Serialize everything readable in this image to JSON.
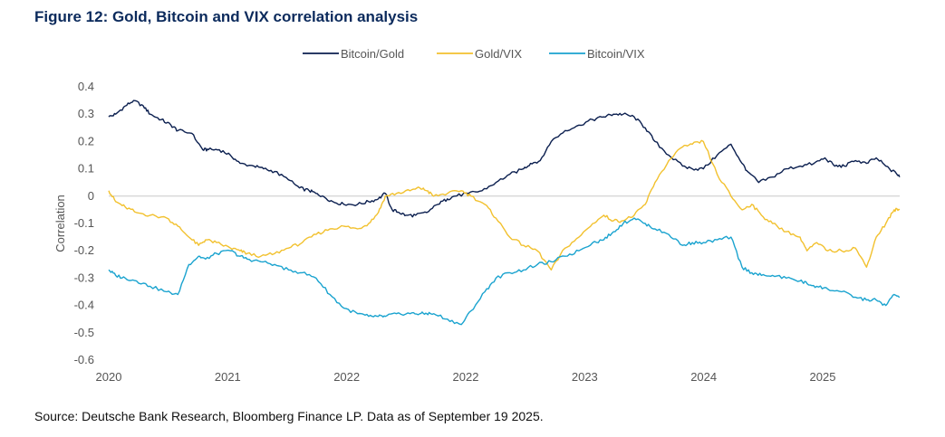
{
  "title": "Figure 12: Gold, Bitcoin and VIX correlation analysis",
  "source": "Source: Deutsche Bank Research, Bloomberg Finance LP. Data as of September 19 2025.",
  "chart_data": {
    "type": "line",
    "xlabel": "",
    "ylabel": "Correlation",
    "ylim": [
      -0.6,
      0.4
    ],
    "yticks": [
      "0.4",
      "0.3",
      "0.2",
      "0.1",
      "0",
      "-0.1",
      "-0.2",
      "-0.3",
      "-0.4",
      "-0.5",
      "-0.6"
    ],
    "xticks": [
      "2020",
      "2021",
      "2022",
      "2022",
      "2023",
      "2024",
      "2025"
    ],
    "legend_position": "top-center",
    "zero_line": true,
    "series": [
      {
        "name": "Bitcoin/Gold",
        "color": "#0b1f4f",
        "x": [
          2020.0,
          2020.05,
          2020.12,
          2020.18,
          2020.25,
          2020.3,
          2020.38,
          2020.45,
          2020.5,
          2020.6,
          2020.68,
          2020.72,
          2020.8,
          2020.88,
          2020.95,
          2021.05,
          2021.12,
          2021.2,
          2021.3,
          2021.38,
          2021.45,
          2021.5,
          2021.55,
          2021.62,
          2021.7,
          2021.8,
          2021.88,
          2021.95,
          2022.0,
          2022.05,
          2022.1,
          2022.15,
          2022.22,
          2022.3,
          2022.38,
          2022.45,
          2022.5,
          2022.6,
          2022.7,
          2022.8,
          2022.9,
          2023.0,
          2023.05,
          2023.12,
          2023.2,
          2023.3,
          2023.4,
          2023.5,
          2023.58,
          2023.65,
          2023.72,
          2023.8,
          2023.88,
          2023.95,
          2024.05,
          2024.15,
          2024.22,
          2024.3,
          2024.4,
          2024.5,
          2024.58,
          2024.62,
          2024.7,
          2024.8,
          2024.9,
          2025.0,
          2025.1,
          2025.18,
          2025.25,
          2025.32,
          2025.4,
          2025.48,
          2025.55,
          2025.62,
          2025.7,
          2025.72
        ],
        "values": [
          0.29,
          0.3,
          0.33,
          0.35,
          0.33,
          0.3,
          0.28,
          0.26,
          0.24,
          0.23,
          0.17,
          0.17,
          0.17,
          0.15,
          0.12,
          0.11,
          0.1,
          0.09,
          0.06,
          0.03,
          0.02,
          0.01,
          0.0,
          -0.02,
          -0.03,
          -0.03,
          -0.02,
          -0.01,
          0.01,
          -0.05,
          -0.06,
          -0.07,
          -0.07,
          -0.06,
          -0.03,
          -0.01,
          0.0,
          0.01,
          0.02,
          0.05,
          0.08,
          0.1,
          0.12,
          0.13,
          0.2,
          0.24,
          0.26,
          0.28,
          0.29,
          0.3,
          0.3,
          0.29,
          0.25,
          0.2,
          0.15,
          0.11,
          0.1,
          0.1,
          0.15,
          0.19,
          0.12,
          0.09,
          0.05,
          0.07,
          0.1,
          0.11,
          0.12,
          0.14,
          0.11,
          0.11,
          0.13,
          0.12,
          0.14,
          0.11,
          0.08,
          0.07
        ]
      },
      {
        "name": "Gold/VIX",
        "color": "#f2c12e",
        "x": [
          2020.0,
          2020.05,
          2020.12,
          2020.2,
          2020.3,
          2020.42,
          2020.5,
          2020.58,
          2020.65,
          2020.7,
          2020.78,
          2020.88,
          2020.95,
          2021.0,
          2021.1,
          2021.2,
          2021.3,
          2021.4,
          2021.5,
          2021.6,
          2021.7,
          2021.8,
          2021.88,
          2021.95,
          2022.0,
          2022.08,
          2022.18,
          2022.25,
          2022.3,
          2022.35,
          2022.45,
          2022.55,
          2022.62,
          2022.72,
          2022.8,
          2022.9,
          2023.0,
          2023.1,
          2023.2,
          2023.3,
          2023.4,
          2023.5,
          2023.58,
          2023.65,
          2023.72,
          2023.8,
          2023.88,
          2023.95,
          2024.05,
          2024.15,
          2024.22,
          2024.3,
          2024.4,
          2024.5,
          2024.58,
          2024.65,
          2024.72,
          2024.8,
          2024.9,
          2025.0,
          2025.05,
          2025.12,
          2025.2,
          2025.3,
          2025.4,
          2025.48,
          2025.55,
          2025.62,
          2025.68,
          2025.72
        ],
        "values": [
          0.02,
          -0.02,
          -0.04,
          -0.06,
          -0.07,
          -0.08,
          -0.11,
          -0.15,
          -0.18,
          -0.16,
          -0.17,
          -0.19,
          -0.2,
          -0.21,
          -0.22,
          -0.21,
          -0.19,
          -0.17,
          -0.14,
          -0.12,
          -0.11,
          -0.12,
          -0.1,
          -0.06,
          0.0,
          0.01,
          0.02,
          0.03,
          0.02,
          0.0,
          0.01,
          0.02,
          0.0,
          -0.03,
          -0.08,
          -0.15,
          -0.18,
          -0.2,
          -0.27,
          -0.19,
          -0.15,
          -0.1,
          -0.07,
          -0.09,
          -0.09,
          -0.07,
          -0.03,
          0.05,
          0.13,
          0.18,
          0.19,
          0.2,
          0.08,
          0.0,
          -0.05,
          -0.03,
          -0.07,
          -0.1,
          -0.13,
          -0.15,
          -0.2,
          -0.17,
          -0.2,
          -0.2,
          -0.19,
          -0.26,
          -0.15,
          -0.1,
          -0.05,
          -0.05
        ]
      },
      {
        "name": "Bitcoin/VIX",
        "color": "#1aa3cf",
        "x": [
          2020.0,
          2020.05,
          2020.12,
          2020.2,
          2020.3,
          2020.42,
          2020.5,
          2020.58,
          2020.65,
          2020.7,
          2020.78,
          2020.88,
          2020.95,
          2021.0,
          2021.1,
          2021.2,
          2021.3,
          2021.4,
          2021.5,
          2021.6,
          2021.7,
          2021.8,
          2021.88,
          2021.95,
          2022.0,
          2022.08,
          2022.18,
          2022.25,
          2022.3,
          2022.35,
          2022.45,
          2022.55,
          2022.62,
          2022.72,
          2022.8,
          2022.9,
          2023.0,
          2023.1,
          2023.2,
          2023.3,
          2023.4,
          2023.5,
          2023.58,
          2023.65,
          2023.72,
          2023.8,
          2023.88,
          2023.95,
          2024.05,
          2024.15,
          2024.22,
          2024.3,
          2024.4,
          2024.5,
          2024.58,
          2024.65,
          2024.72,
          2024.8,
          2024.9,
          2025.0,
          2025.05,
          2025.12,
          2025.2,
          2025.3,
          2025.4,
          2025.48,
          2025.55,
          2025.62,
          2025.68,
          2025.72
        ],
        "values": [
          -0.27,
          -0.29,
          -0.3,
          -0.31,
          -0.33,
          -0.35,
          -0.36,
          -0.25,
          -0.22,
          -0.23,
          -0.21,
          -0.2,
          -0.22,
          -0.23,
          -0.24,
          -0.25,
          -0.27,
          -0.28,
          -0.3,
          -0.36,
          -0.41,
          -0.43,
          -0.44,
          -0.44,
          -0.44,
          -0.43,
          -0.43,
          -0.43,
          -0.43,
          -0.43,
          -0.45,
          -0.47,
          -0.42,
          -0.35,
          -0.3,
          -0.28,
          -0.27,
          -0.25,
          -0.24,
          -0.22,
          -0.2,
          -0.17,
          -0.16,
          -0.13,
          -0.1,
          -0.08,
          -0.1,
          -0.12,
          -0.14,
          -0.18,
          -0.17,
          -0.17,
          -0.16,
          -0.15,
          -0.26,
          -0.28,
          -0.29,
          -0.29,
          -0.3,
          -0.31,
          -0.32,
          -0.33,
          -0.34,
          -0.35,
          -0.37,
          -0.38,
          -0.38,
          -0.4,
          -0.36,
          -0.37
        ]
      }
    ]
  }
}
